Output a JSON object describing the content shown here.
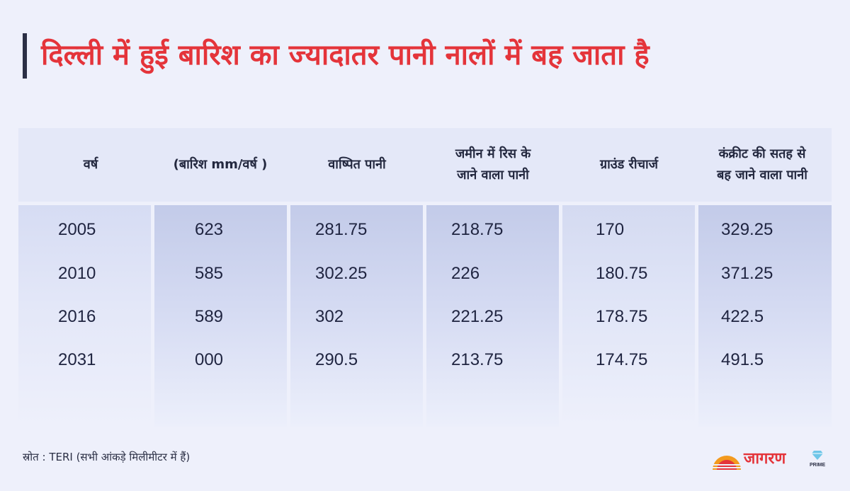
{
  "title": "दिल्ली में हुई बारिश का ज्यादातर पानी नालों में बह जाता है",
  "source": "स्रोत : TERI (सभी आंकड़े मिलीमीटर में हैं)",
  "logo": {
    "name": "जागरण",
    "badge": "PRIME"
  },
  "colors": {
    "title": "#e4343a",
    "text": "#1f2440",
    "background": "#eef0fb"
  },
  "chart_data": {
    "type": "table",
    "title": "दिल्ली में हुई बारिश का ज्यादातर पानी नालों में बह जाता है",
    "columns": [
      "वर्ष",
      "(बारिश mm/वर्ष )",
      "वाष्पित पानी",
      "जमीन में रिस के\nजाने वाला पानी",
      "ग्राउंड रीचार्ज",
      "कंक्रीट की सतह से\nबह जाने वाला पानी"
    ],
    "rows": [
      [
        "2005",
        "623",
        "281.75",
        "218.75",
        "170",
        "329.25"
      ],
      [
        "2010",
        "585",
        "302.25",
        "226",
        "180.75",
        "371.25"
      ],
      [
        "2016",
        "589",
        "302",
        "221.25",
        "178.75",
        "422.5"
      ],
      [
        "2031",
        "000",
        "290.5",
        "213.75",
        "174.75",
        "491.5"
      ]
    ]
  }
}
